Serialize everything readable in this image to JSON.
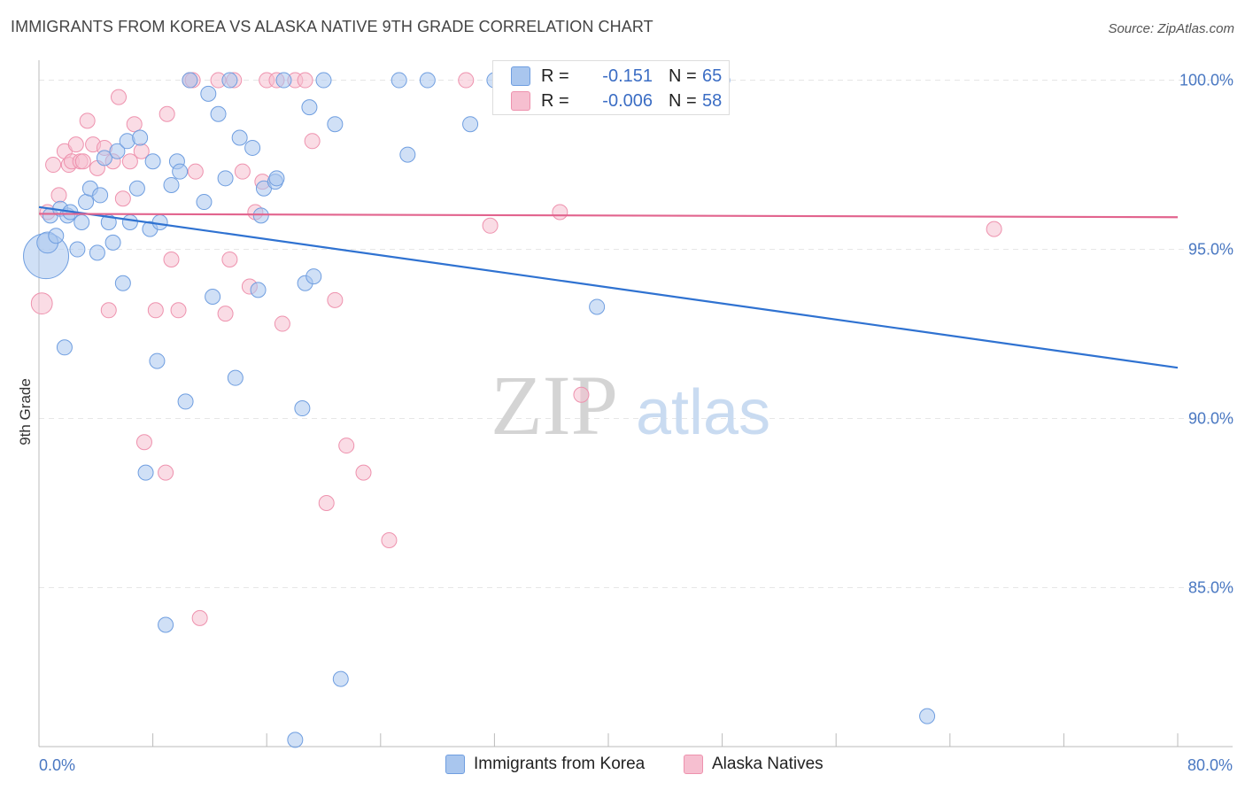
{
  "title": "IMMIGRANTS FROM KOREA VS ALASKA NATIVE 9TH GRADE CORRELATION CHART",
  "source": "Source: ZipAtlas.com",
  "watermark": {
    "zip": "ZIP",
    "atlas": "atlas"
  },
  "legend": {
    "rows": [
      {
        "r_label": "R =",
        "r_value": "-0.151",
        "n_label": "N =",
        "n_value": "65"
      },
      {
        "r_label": "R =",
        "r_value": "-0.006",
        "n_label": "N =",
        "n_value": "58"
      }
    ]
  },
  "bottom_legend": {
    "korea": "Immigrants from Korea",
    "alaska": "Alaska Natives"
  },
  "colors": {
    "korea_fill": "#a9c6ee",
    "korea_stroke": "#6f9ee0",
    "korea_line": "#2f72d1",
    "alaska_fill": "#f6bfd0",
    "alaska_stroke": "#ee92ae",
    "alaska_line": "#e2648e",
    "tick_label": "#4a78c2",
    "grid": "#e6e6e6"
  },
  "chart_data": {
    "type": "scatter",
    "title": "IMMIGRANTS FROM KOREA VS ALASKA NATIVE 9TH GRADE CORRELATION CHART",
    "xlabel": "",
    "ylabel": "9th Grade",
    "xlim": [
      0,
      80
    ],
    "ylim": [
      80.3,
      100.8
    ],
    "x_tick_labels": [
      "0.0%",
      "80.0%"
    ],
    "y_ticks": [
      85,
      90,
      95,
      100
    ],
    "y_tick_labels": [
      "85.0%",
      "90.0%",
      "95.0%",
      "100.0%"
    ],
    "grid": true,
    "legend_position": "top-center",
    "series": [
      {
        "name": "Immigrants from Korea",
        "r": -0.151,
        "n": 65,
        "trend": {
          "x0": 0,
          "y0": 96.25,
          "x1": 80,
          "y1": 91.5
        },
        "points": [
          [
            0.5,
            94.8,
            3
          ],
          [
            0.6,
            95.2,
            1.4
          ],
          [
            0.8,
            96.0,
            1
          ],
          [
            1.2,
            95.4,
            1
          ],
          [
            1.5,
            96.2,
            1
          ],
          [
            1.8,
            92.1,
            1
          ],
          [
            2.0,
            96.0,
            1
          ],
          [
            2.2,
            96.1,
            1
          ],
          [
            2.7,
            95.0,
            1
          ],
          [
            3.0,
            95.8,
            1
          ],
          [
            3.3,
            96.4,
            1
          ],
          [
            3.6,
            96.8,
            1
          ],
          [
            4.1,
            94.9,
            1
          ],
          [
            4.3,
            96.6,
            1
          ],
          [
            4.6,
            97.7,
            1
          ],
          [
            4.9,
            95.8,
            1
          ],
          [
            5.2,
            95.2,
            1
          ],
          [
            5.5,
            97.9,
            1
          ],
          [
            5.9,
            94.0,
            1
          ],
          [
            6.2,
            98.2,
            1
          ],
          [
            6.4,
            95.8,
            1
          ],
          [
            6.9,
            96.8,
            1
          ],
          [
            7.1,
            98.3,
            1
          ],
          [
            7.5,
            88.4,
            1
          ],
          [
            7.8,
            95.6,
            1
          ],
          [
            8.0,
            97.6,
            1
          ],
          [
            8.3,
            91.7,
            1
          ],
          [
            8.5,
            95.8,
            1
          ],
          [
            8.9,
            83.9,
            1
          ],
          [
            9.3,
            96.9,
            1
          ],
          [
            9.7,
            97.6,
            1
          ],
          [
            9.9,
            97.3,
            1
          ],
          [
            10.3,
            90.5,
            1
          ],
          [
            10.6,
            100.0,
            1
          ],
          [
            11.6,
            96.4,
            1
          ],
          [
            11.9,
            99.6,
            1
          ],
          [
            12.2,
            93.6,
            1
          ],
          [
            12.6,
            99.0,
            1
          ],
          [
            13.1,
            97.1,
            1
          ],
          [
            13.4,
            100.0,
            1
          ],
          [
            13.8,
            91.2,
            1
          ],
          [
            14.1,
            98.3,
            1
          ],
          [
            15.0,
            98.0,
            1
          ],
          [
            15.4,
            93.8,
            1
          ],
          [
            15.6,
            96.0,
            1
          ],
          [
            15.8,
            96.8,
            1
          ],
          [
            16.6,
            97.0,
            1
          ],
          [
            16.7,
            97.1,
            1
          ],
          [
            17.2,
            100.0,
            1
          ],
          [
            18.0,
            80.5,
            1
          ],
          [
            18.5,
            90.3,
            1
          ],
          [
            18.7,
            94.0,
            1
          ],
          [
            19.0,
            99.2,
            1
          ],
          [
            19.3,
            94.2,
            1
          ],
          [
            20.0,
            100.0,
            1
          ],
          [
            20.8,
            98.7,
            1
          ],
          [
            21.2,
            82.3,
            1
          ],
          [
            25.3,
            100.0,
            1
          ],
          [
            25.9,
            97.8,
            1
          ],
          [
            27.3,
            100.0,
            1
          ],
          [
            30.3,
            98.7,
            1
          ],
          [
            32.0,
            100.0,
            1
          ],
          [
            39.2,
            93.3,
            1
          ],
          [
            48.0,
            100.0,
            1
          ],
          [
            62.4,
            81.2,
            1
          ]
        ]
      },
      {
        "name": "Alaska Natives",
        "r": -0.006,
        "n": 58,
        "trend": {
          "x0": 0,
          "y0": 96.05,
          "x1": 80,
          "y1": 95.95
        },
        "points": [
          [
            0.2,
            93.4,
            1.4
          ],
          [
            0.6,
            96.1,
            1
          ],
          [
            1.0,
            97.5,
            1
          ],
          [
            1.4,
            96.6,
            1
          ],
          [
            1.8,
            97.9,
            1
          ],
          [
            2.1,
            97.5,
            1
          ],
          [
            2.3,
            97.6,
            1
          ],
          [
            2.6,
            98.1,
            1
          ],
          [
            2.9,
            97.6,
            1
          ],
          [
            3.1,
            97.6,
            1
          ],
          [
            3.4,
            98.8,
            1
          ],
          [
            3.8,
            98.1,
            1
          ],
          [
            4.1,
            97.4,
            1
          ],
          [
            4.6,
            98.0,
            1
          ],
          [
            4.9,
            93.2,
            1
          ],
          [
            5.2,
            97.6,
            1
          ],
          [
            5.6,
            99.5,
            1
          ],
          [
            5.9,
            96.5,
            1
          ],
          [
            6.4,
            97.6,
            1
          ],
          [
            6.7,
            98.7,
            1
          ],
          [
            7.2,
            97.9,
            1
          ],
          [
            7.4,
            89.3,
            1
          ],
          [
            8.2,
            93.2,
            1
          ],
          [
            8.9,
            88.4,
            1
          ],
          [
            9.0,
            99.0,
            1
          ],
          [
            9.3,
            94.7,
            1
          ],
          [
            9.8,
            93.2,
            1
          ],
          [
            10.6,
            100.0,
            1
          ],
          [
            10.8,
            100.0,
            1
          ],
          [
            11.0,
            97.3,
            1
          ],
          [
            11.3,
            84.1,
            1
          ],
          [
            12.6,
            100.0,
            1
          ],
          [
            13.1,
            93.1,
            1
          ],
          [
            13.4,
            94.7,
            1
          ],
          [
            13.7,
            100.0,
            1
          ],
          [
            14.3,
            97.3,
            1
          ],
          [
            14.8,
            93.9,
            1
          ],
          [
            15.2,
            96.1,
            1
          ],
          [
            15.7,
            97.0,
            1
          ],
          [
            16.0,
            100.0,
            1
          ],
          [
            16.7,
            100.0,
            1
          ],
          [
            17.1,
            92.8,
            1
          ],
          [
            18.0,
            100.0,
            1
          ],
          [
            18.7,
            100.0,
            1
          ],
          [
            19.2,
            98.2,
            1
          ],
          [
            20.2,
            87.5,
            1
          ],
          [
            20.8,
            93.5,
            1
          ],
          [
            21.6,
            89.2,
            1
          ],
          [
            22.8,
            88.4,
            1
          ],
          [
            24.6,
            86.4,
            1
          ],
          [
            30.0,
            100.0,
            1
          ],
          [
            31.7,
            95.7,
            1
          ],
          [
            36.6,
            96.1,
            1
          ],
          [
            38.1,
            90.7,
            1
          ],
          [
            44.8,
            100.0,
            1
          ],
          [
            45.1,
            100.0,
            1
          ],
          [
            46.9,
            100.0,
            1
          ],
          [
            67.1,
            95.6,
            1
          ]
        ]
      }
    ]
  }
}
